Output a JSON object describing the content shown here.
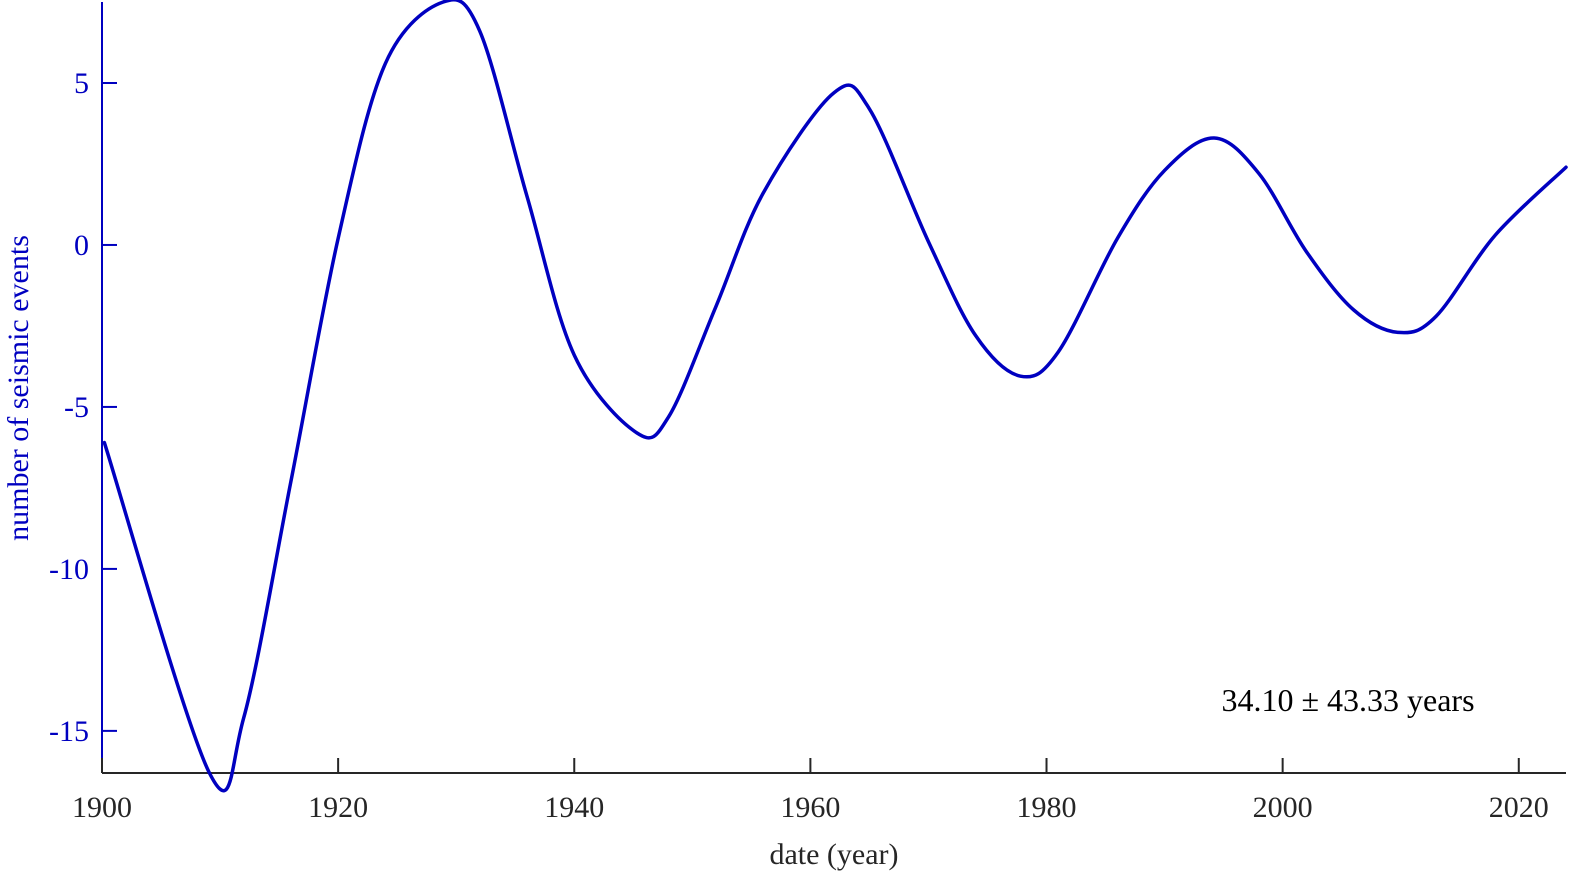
{
  "chart_data": {
    "type": "line",
    "title": "",
    "xlabel": "date (year)",
    "ylabel": "number of seismic events",
    "xlim": [
      1900,
      2024
    ],
    "ylim": [
      -16.3,
      7.5
    ],
    "grid": false,
    "x_ticks": [
      1900,
      1920,
      1940,
      1960,
      1980,
      2000,
      2020
    ],
    "y_ticks": [
      -15,
      -10,
      -5,
      0,
      5
    ],
    "annotation": "34.10 ± 43.33 years",
    "line_color": "#0000c0",
    "x_axis_color": "#262626",
    "y_axis_color": "#0000c0",
    "series": [
      {
        "x": [
          1900.2,
          1909.1,
          1912,
          1916,
          1920,
          1924,
          1928.9,
          1932,
          1936,
          1940,
          1945.3,
          1948,
          1952,
          1956,
          1962,
          1965,
          1970,
          1974,
          1977.8,
          1981,
          1986,
          1990,
          1994.2,
          1998,
          2002,
          2006,
          2009.8,
          2013,
          2018,
          2024
        ],
        "y": [
          -6.1,
          -16.3,
          -14.6,
          -7.3,
          0.2,
          5.6,
          7.5,
          6.6,
          1.5,
          -3.4,
          -5.8,
          -5.3,
          -1.9,
          1.6,
          4.7,
          4.2,
          0.1,
          -2.8,
          -4.05,
          -3.3,
          0.2,
          2.3,
          3.3,
          2.2,
          -0.2,
          -2.0,
          -2.7,
          -2.2,
          0.3,
          2.4
        ]
      }
    ]
  }
}
